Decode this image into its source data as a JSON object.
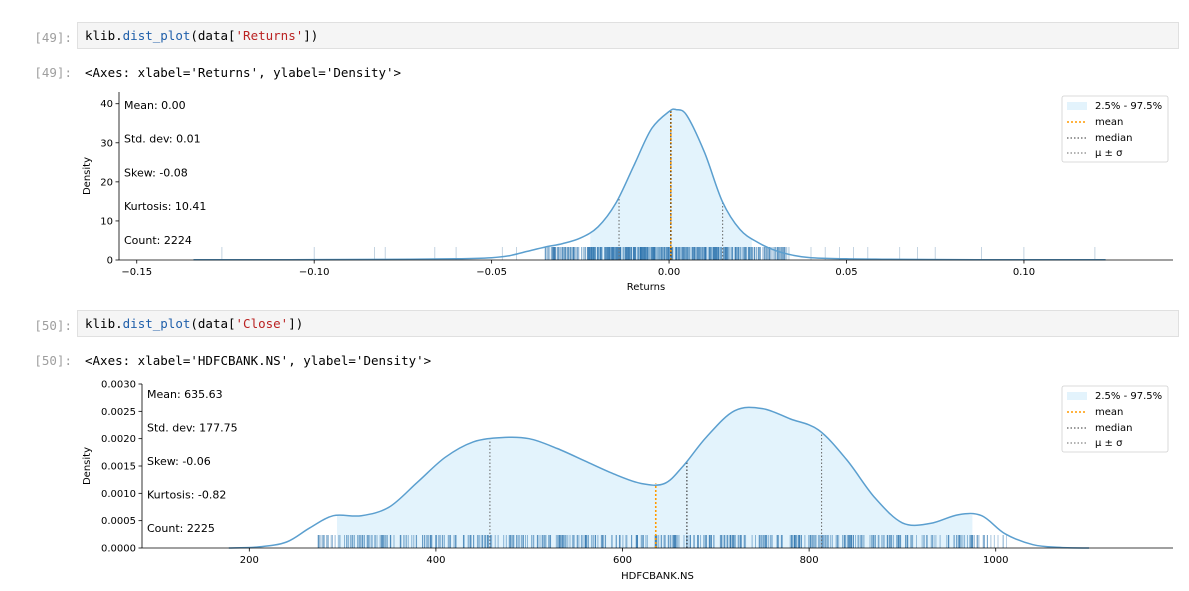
{
  "cells": [
    {
      "in_prompt": "[49]:",
      "code": {
        "obj": "klib",
        "dot": ".",
        "fn": "dist_plot",
        "pre": "(data[",
        "arg": "'Returns'",
        "post": "])"
      },
      "out_prompt": "[49]:",
      "output_text": "<Axes: xlabel='Returns', ylabel='Density'>"
    },
    {
      "in_prompt": "[50]:",
      "code": {
        "obj": "klib",
        "dot": ".",
        "fn": "dist_plot",
        "pre": "(data[",
        "arg": "'Close'",
        "post": "])"
      },
      "out_prompt": "[50]:",
      "output_text": "<Axes: xlabel='HDFCBANK.NS', ylabel='Density'>"
    }
  ],
  "chart_data": [
    {
      "type": "area",
      "xlabel": "Returns",
      "ylabel": "Density",
      "xlim": [
        -0.155,
        0.142
      ],
      "ylim": [
        0,
        43
      ],
      "xticks": [
        -0.15,
        -0.1,
        -0.05,
        0.0,
        0.05,
        0.1
      ],
      "xtick_labels": [
        "−0.15",
        "−0.10",
        "−0.05",
        "0.00",
        "0.05",
        "0.10"
      ],
      "yticks": [
        0,
        10,
        20,
        30,
        40
      ],
      "ytick_labels": [
        "0",
        "10",
        "20",
        "30",
        "40"
      ],
      "stats": [
        "Mean: 0.00",
        "Std. dev: 0.01",
        "Skew: -0.08",
        "Kurtosis: 10.41",
        "Count: 2224"
      ],
      "legend": {
        "position": "top-right",
        "entries": [
          "2.5% - 97.5%",
          "mean",
          "median",
          "μ ± σ"
        ]
      },
      "colors": {
        "kde": "#5b9fcf",
        "fill": "#e3f3fc",
        "rug": "#2b73ad",
        "mean": "#ff9a00",
        "median": "#333333",
        "sigma": "#666666"
      },
      "kde": {
        "x": [
          -0.134,
          -0.12,
          -0.1,
          -0.08,
          -0.06,
          -0.05,
          -0.045,
          -0.04,
          -0.035,
          -0.03,
          -0.025,
          -0.02,
          -0.015,
          -0.01,
          -0.005,
          0.0,
          0.002,
          0.005,
          0.01,
          0.015,
          0.02,
          0.025,
          0.03,
          0.035,
          0.04,
          0.05,
          0.06,
          0.08,
          0.1,
          0.123
        ],
        "y": [
          0.05,
          0.05,
          0.1,
          0.15,
          0.3,
          0.6,
          1.1,
          2.2,
          3.3,
          4.2,
          5.6,
          8.5,
          14.5,
          24.0,
          33.5,
          38.0,
          38.5,
          37.0,
          27.5,
          15.0,
          7.8,
          4.5,
          2.4,
          1.2,
          0.6,
          0.3,
          0.2,
          0.1,
          0.05,
          0.05
        ]
      },
      "interval": [
        -0.0222,
        0.0233
      ],
      "mean": 0.0005,
      "median": 0.0005,
      "sigma_lines": [
        -0.0141,
        0.0151
      ],
      "rug_dense": [
        -0.035,
        0.034
      ],
      "rug_sparse": [
        -0.126,
        -0.1,
        -0.083,
        -0.08,
        -0.066,
        -0.06,
        -0.047,
        -0.043,
        0.04,
        0.044,
        0.048,
        0.052,
        0.056,
        0.065,
        0.07,
        0.075,
        0.088,
        0.1,
        0.12
      ]
    },
    {
      "type": "area",
      "xlabel": "HDFCBANK.NS",
      "ylabel": "Density",
      "xlim": [
        85,
        1190
      ],
      "ylim": [
        0,
        0.003
      ],
      "xticks": [
        200,
        400,
        600,
        800,
        1000
      ],
      "xtick_labels": [
        "200",
        "400",
        "600",
        "800",
        "1000"
      ],
      "yticks": [
        0,
        0.0005,
        0.001,
        0.0015,
        0.002,
        0.0025,
        0.003
      ],
      "ytick_labels": [
        "0.0000",
        "0.0005",
        "0.0010",
        "0.0015",
        "0.0020",
        "0.0025",
        "0.0030"
      ],
      "stats": [
        "Mean: 635.63",
        "Std. dev: 177.75",
        "Skew: -0.06",
        "Kurtosis: -0.82",
        "Count: 2225"
      ],
      "legend": {
        "position": "top-right",
        "entries": [
          "2.5% - 97.5%",
          "mean",
          "median",
          "μ ± σ"
        ]
      },
      "colors": {
        "kde": "#5b9fcf",
        "fill": "#e3f3fc",
        "rug": "#2b73ad",
        "mean": "#ff9a00",
        "median": "#333333",
        "sigma": "#666666"
      },
      "kde": {
        "x": [
          178,
          210,
          240,
          265,
          290,
          320,
          350,
          380,
          410,
          440,
          470,
          500,
          530,
          560,
          590,
          620,
          645,
          665,
          690,
          720,
          750,
          780,
          810,
          840,
          870,
          900,
          930,
          960,
          985,
          1010,
          1040,
          1070,
          1100
        ],
        "y": [
          0.0,
          2e-05,
          0.00011,
          0.00037,
          0.00059,
          0.00059,
          0.00075,
          0.0012,
          0.00166,
          0.00194,
          0.00202,
          0.002,
          0.00182,
          0.00159,
          0.00136,
          0.00118,
          0.00118,
          0.0015,
          0.00203,
          0.00251,
          0.00255,
          0.00236,
          0.00216,
          0.00162,
          0.00093,
          0.00046,
          0.00045,
          0.00061,
          0.00059,
          0.00026,
          6e-05,
          1e-05,
          0.0
        ]
      },
      "interval": [
        294,
        975
      ],
      "mean": 635.63,
      "median": 669,
      "sigma_lines": [
        457.88,
        813.38
      ],
      "rug_dense": [
        273,
        1012
      ],
      "rug_sparse": []
    }
  ]
}
